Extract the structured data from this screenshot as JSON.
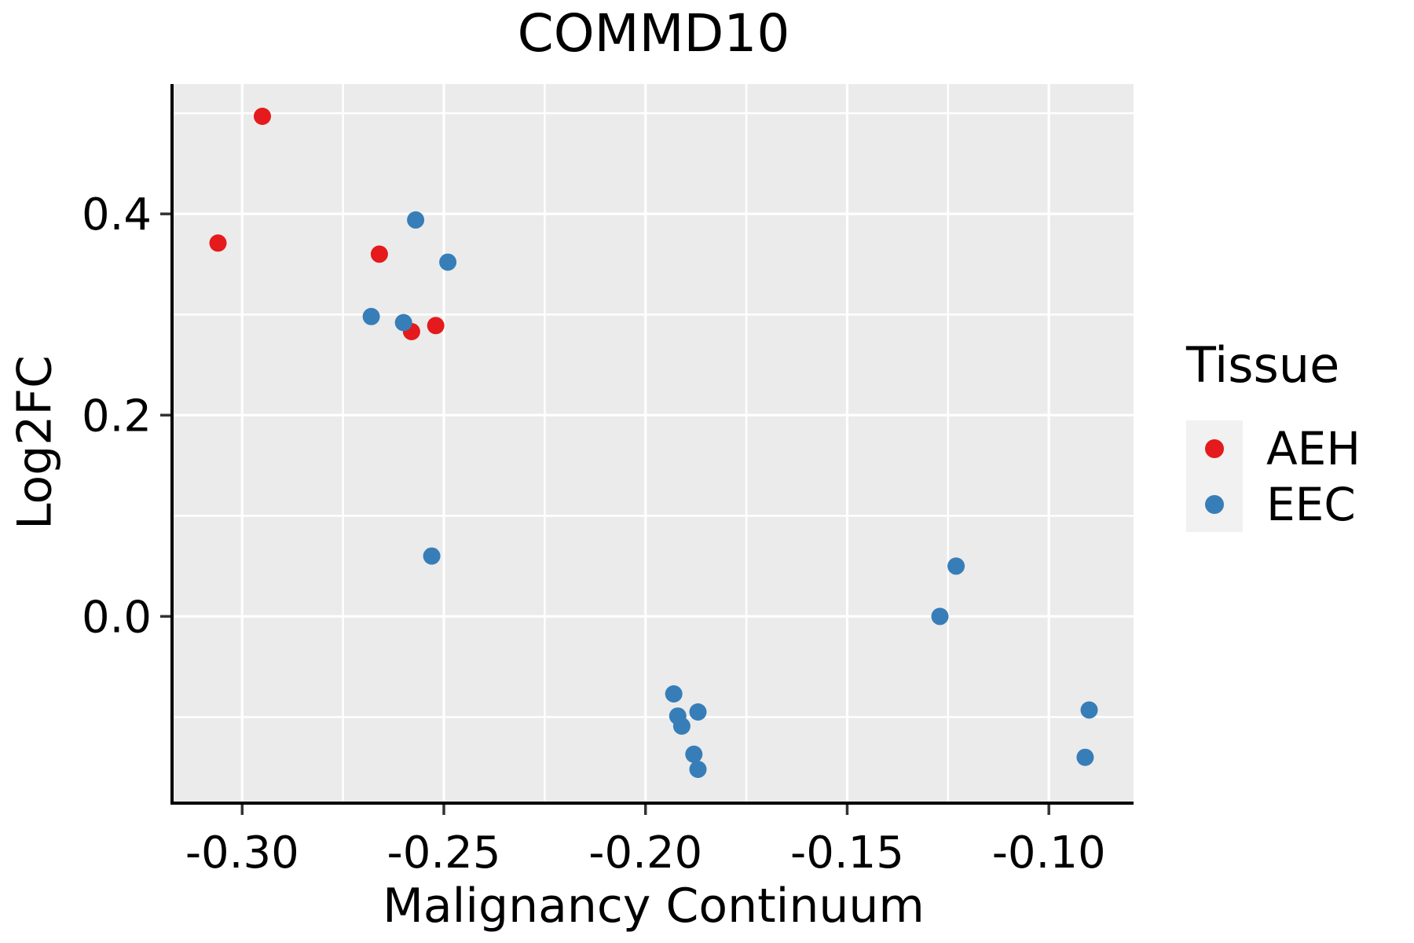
{
  "title": "COMMD10",
  "axes": {
    "x": {
      "label": "Malignancy Continuum",
      "tick_labels": [
        "-0.30",
        "-0.25",
        "-0.20",
        "-0.15",
        "-0.10"
      ]
    },
    "y": {
      "label": "Log2FC",
      "tick_labels": [
        "0.0",
        "0.2",
        "0.4"
      ]
    }
  },
  "legend": {
    "title": "Tissue",
    "position": "right",
    "items": [
      {
        "label": "AEH",
        "color": "#E41A1C"
      },
      {
        "label": "EEC",
        "color": "#377EB8"
      }
    ]
  },
  "colors": {
    "aeh_red": "#E41A1C",
    "eec_blue": "#377EB8",
    "panel_background": "#EBEBEB",
    "gridline": "#FFFFFF",
    "legend_key_background": "#F1F1F1",
    "axis_line": "#000000",
    "tick_mark": "#333333",
    "text": "#000000"
  },
  "chart_data": {
    "type": "scatter",
    "title": "COMMD10",
    "xlabel": "Malignancy Continuum",
    "ylabel": "Log2FC",
    "xlim": [
      -0.317,
      -0.079
    ],
    "ylim": [
      -0.184,
      0.529
    ],
    "grid": true,
    "legend_position": "right",
    "x_major_ticks": [
      -0.3,
      -0.25,
      -0.2,
      -0.15,
      -0.1
    ],
    "x_tick_labels": [
      "-0.30",
      "-0.25",
      "-0.20",
      "-0.15",
      "-0.10"
    ],
    "x_minor_gridlines": [
      -0.275,
      -0.225,
      -0.175,
      -0.125
    ],
    "y_major_ticks": [
      0.0,
      0.2,
      0.4
    ],
    "y_tick_labels": [
      "0.0",
      "0.2",
      "0.4"
    ],
    "y_minor_gridlines": [
      -0.1,
      0.1,
      0.3,
      0.5
    ],
    "series": [
      {
        "name": "AEH",
        "color": "#E41A1C",
        "points": [
          [
            -0.306,
            0.371
          ],
          [
            -0.295,
            0.497
          ],
          [
            -0.266,
            0.36
          ],
          [
            -0.258,
            0.283
          ],
          [
            -0.252,
            0.289
          ]
        ]
      },
      {
        "name": "EEC",
        "color": "#377EB8",
        "points": [
          [
            -0.268,
            0.298
          ],
          [
            -0.26,
            0.292
          ],
          [
            -0.257,
            0.394
          ],
          [
            -0.253,
            0.06
          ],
          [
            -0.249,
            0.352
          ],
          [
            -0.193,
            -0.077
          ],
          [
            -0.192,
            -0.099
          ],
          [
            -0.191,
            -0.109
          ],
          [
            -0.188,
            -0.137
          ],
          [
            -0.187,
            -0.095
          ],
          [
            -0.187,
            -0.152
          ],
          [
            -0.127,
            0.0
          ],
          [
            -0.123,
            0.05
          ],
          [
            -0.091,
            -0.14
          ],
          [
            -0.09,
            -0.093
          ]
        ]
      }
    ]
  }
}
